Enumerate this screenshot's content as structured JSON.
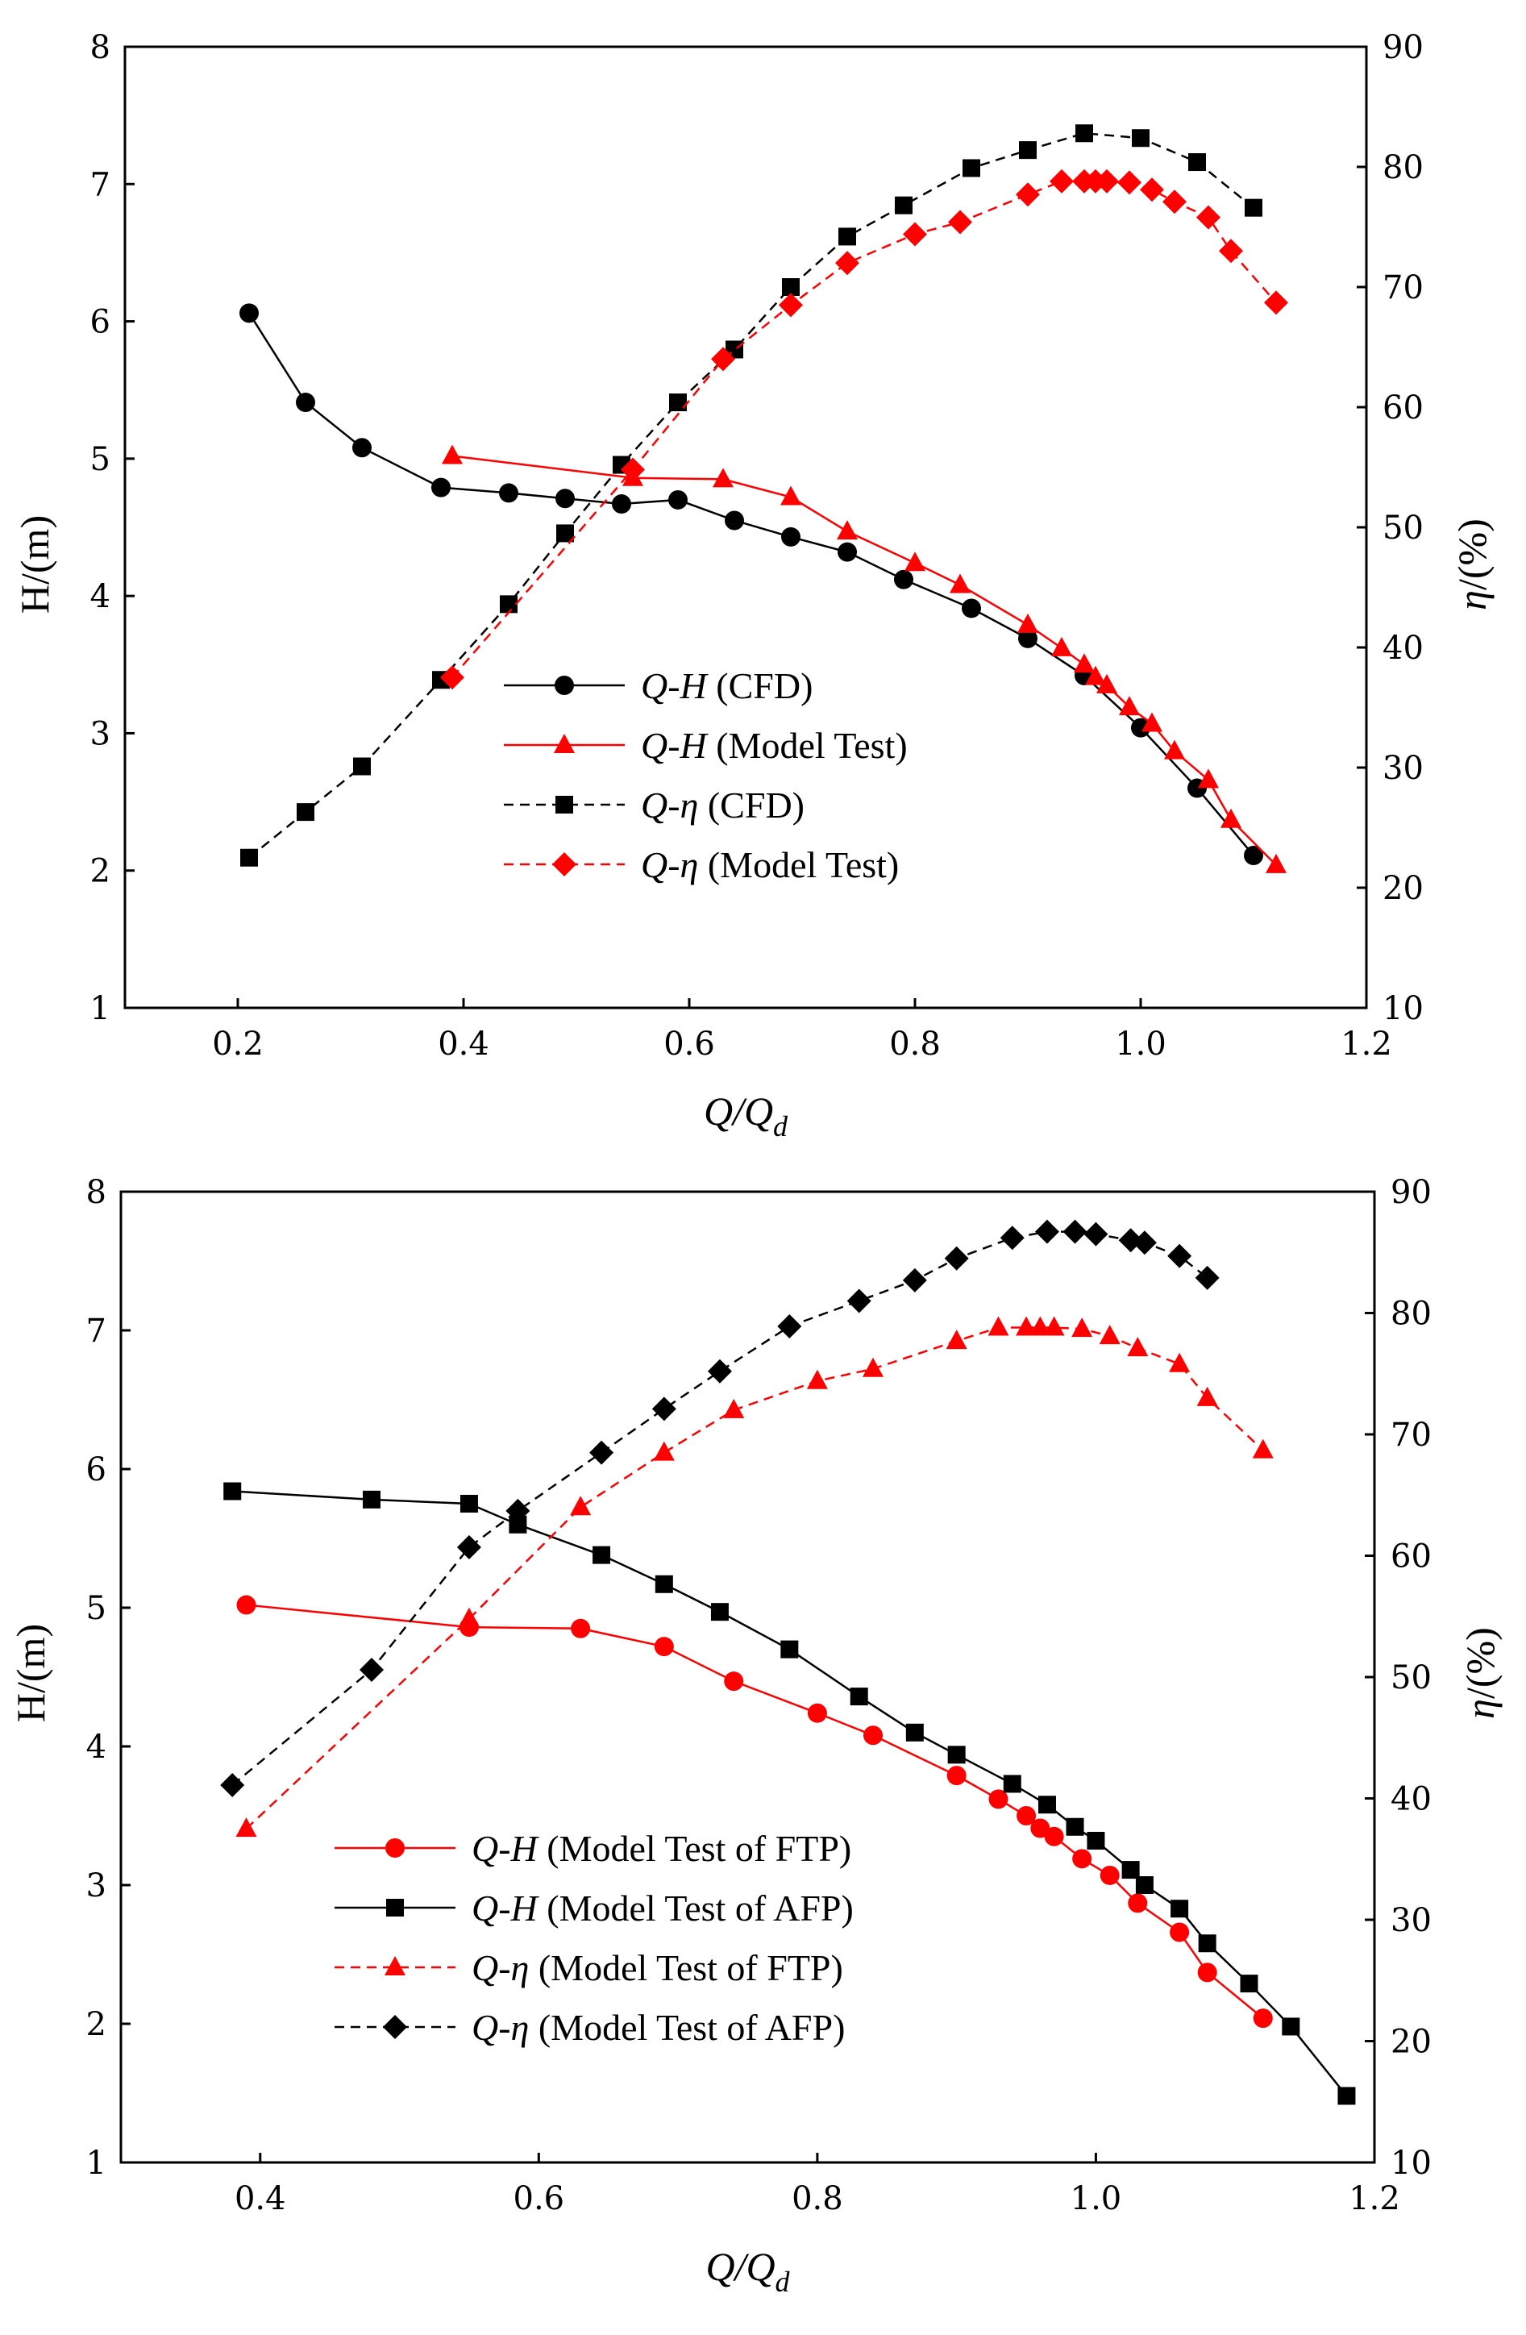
{
  "chart_data": [
    {
      "type": "line",
      "xlabel": "Q/Q",
      "xlabel_sub": "d",
      "ylabel_left": "H/(m)",
      "ylabel_right": "η/(%)",
      "xlim": [
        0.1,
        1.2
      ],
      "ylim_left": [
        1,
        8
      ],
      "ylim_right": [
        10,
        90
      ],
      "x_ticks": [
        "0.2",
        "0.4",
        "0.6",
        "0.8",
        "1.0",
        "1.2"
      ],
      "y_left_ticks": [
        "1",
        "2",
        "3",
        "4",
        "5",
        "6",
        "7",
        "8"
      ],
      "y_right_ticks": [
        "10",
        "20",
        "30",
        "40",
        "50",
        "60",
        "70",
        "80",
        "90"
      ],
      "legend_position": "center",
      "series": [
        {
          "name_italic": "Q-H",
          "name_rest": " (CFD)",
          "axis": "left",
          "color": "#000000",
          "dashed": false,
          "marker": "circle",
          "x": [
            0.21,
            0.26,
            0.31,
            0.38,
            0.44,
            0.49,
            0.54,
            0.59,
            0.64,
            0.69,
            0.74,
            0.79,
            0.85,
            0.9,
            0.95,
            1.0,
            1.05,
            1.1
          ],
          "y": [
            6.06,
            5.41,
            5.08,
            4.79,
            4.75,
            4.71,
            4.67,
            4.7,
            4.55,
            4.43,
            4.32,
            4.12,
            3.91,
            3.69,
            3.42,
            3.04,
            2.6,
            2.11
          ]
        },
        {
          "name_italic": "Q-H",
          "name_rest": " (Model Test)",
          "axis": "left",
          "color": "#ff0000",
          "dashed": false,
          "marker": "triangle",
          "x": [
            0.39,
            0.55,
            0.63,
            0.69,
            0.74,
            0.8,
            0.84,
            0.9,
            0.93,
            0.95,
            0.96,
            0.97,
            0.99,
            1.01,
            1.03,
            1.06,
            1.08,
            1.12
          ],
          "y": [
            5.02,
            4.86,
            4.85,
            4.72,
            4.47,
            4.24,
            4.08,
            3.79,
            3.62,
            3.5,
            3.41,
            3.35,
            3.19,
            3.07,
            2.87,
            2.66,
            2.37,
            2.04
          ]
        },
        {
          "name_italic": "Q-η",
          "name_rest": " (CFD)",
          "axis": "right",
          "color": "#000000",
          "dashed": true,
          "marker": "square",
          "x": [
            0.21,
            0.26,
            0.31,
            0.38,
            0.44,
            0.49,
            0.54,
            0.59,
            0.64,
            0.69,
            0.74,
            0.79,
            0.85,
            0.9,
            0.95,
            1.0,
            1.05,
            1.1
          ],
          "y": [
            22.5,
            26.3,
            30.1,
            37.3,
            43.6,
            49.5,
            55.2,
            60.4,
            64.8,
            70.0,
            74.2,
            76.8,
            79.9,
            81.4,
            82.8,
            82.4,
            80.4,
            76.6
          ]
        },
        {
          "name_italic": "Q-η",
          "name_rest": " (Model Test)",
          "axis": "right",
          "color": "#ff0000",
          "dashed": true,
          "marker": "diamond",
          "x": [
            0.39,
            0.55,
            0.63,
            0.69,
            0.74,
            0.8,
            0.84,
            0.9,
            0.93,
            0.95,
            0.96,
            0.97,
            0.99,
            1.01,
            1.03,
            1.06,
            1.08,
            1.12
          ],
          "y": [
            37.5,
            54.8,
            64.0,
            68.5,
            72.0,
            74.4,
            75.4,
            77.7,
            78.8,
            78.8,
            78.8,
            78.8,
            78.7,
            78.1,
            77.1,
            75.8,
            73.0,
            68.7
          ]
        }
      ]
    },
    {
      "type": "line",
      "xlabel": "Q/Q",
      "xlabel_sub": "d",
      "ylabel_left": "H/(m)",
      "ylabel_right": "η/(%)",
      "xlim": [
        0.3,
        1.2
      ],
      "ylim_left": [
        1,
        8
      ],
      "ylim_right": [
        10,
        90
      ],
      "x_ticks": [
        "0.4",
        "0.6",
        "0.8",
        "1.0",
        "1.2"
      ],
      "y_left_ticks": [
        "1",
        "2",
        "3",
        "4",
        "5",
        "6",
        "7",
        "8"
      ],
      "y_right_ticks": [
        "10",
        "20",
        "30",
        "40",
        "50",
        "60",
        "70",
        "80",
        "90"
      ],
      "legend_position": "lower-left",
      "series": [
        {
          "name_italic": "Q-H",
          "name_rest": " (Model Test of FTP)",
          "axis": "left",
          "color": "#ff0000",
          "dashed": false,
          "marker": "circle",
          "x": [
            0.39,
            0.55,
            0.63,
            0.69,
            0.74,
            0.8,
            0.84,
            0.9,
            0.93,
            0.95,
            0.96,
            0.97,
            0.99,
            1.01,
            1.03,
            1.06,
            1.08,
            1.12
          ],
          "y": [
            5.02,
            4.86,
            4.85,
            4.72,
            4.47,
            4.24,
            4.08,
            3.79,
            3.62,
            3.5,
            3.41,
            3.35,
            3.19,
            3.07,
            2.87,
            2.66,
            2.37,
            2.04
          ]
        },
        {
          "name_italic": "Q-H",
          "name_rest": " (Model Test of AFP)",
          "axis": "left",
          "color": "#000000",
          "dashed": false,
          "marker": "square",
          "x": [
            0.38,
            0.48,
            0.55,
            0.585,
            0.645,
            0.69,
            0.73,
            0.78,
            0.83,
            0.87,
            0.9,
            0.94,
            0.965,
            0.985,
            1.0,
            1.025,
            1.035,
            1.06,
            1.08,
            1.11,
            1.14,
            1.18
          ],
          "y": [
            5.84,
            5.78,
            5.75,
            5.6,
            5.38,
            5.17,
            4.97,
            4.7,
            4.36,
            4.1,
            3.94,
            3.73,
            3.58,
            3.42,
            3.32,
            3.11,
            3.0,
            2.83,
            2.58,
            2.29,
            1.98,
            1.48
          ]
        },
        {
          "name_italic": "Q-η",
          "name_rest": " (Model Test of FTP)",
          "axis": "right",
          "color": "#ff0000",
          "dashed": true,
          "marker": "triangle",
          "x": [
            0.39,
            0.55,
            0.63,
            0.69,
            0.74,
            0.8,
            0.84,
            0.9,
            0.93,
            0.95,
            0.96,
            0.97,
            0.99,
            1.01,
            1.03,
            1.06,
            1.08,
            1.12
          ],
          "y": [
            37.5,
            54.8,
            64.0,
            68.5,
            72.0,
            74.4,
            75.4,
            77.7,
            78.8,
            78.8,
            78.8,
            78.8,
            78.7,
            78.1,
            77.1,
            75.8,
            73.0,
            68.7
          ]
        },
        {
          "name_italic": "Q-η",
          "name_rest": " (Model Test of AFP)",
          "axis": "right",
          "color": "#000000",
          "dashed": true,
          "marker": "diamond",
          "x": [
            0.38,
            0.48,
            0.55,
            0.585,
            0.645,
            0.69,
            0.73,
            0.78,
            0.83,
            0.87,
            0.9,
            0.94,
            0.965,
            0.985,
            1.0,
            1.025,
            1.035,
            1.06,
            1.08
          ],
          "y": [
            41.1,
            50.6,
            60.7,
            63.7,
            68.5,
            72.1,
            75.2,
            78.9,
            81.0,
            82.7,
            84.5,
            86.2,
            86.7,
            86.7,
            86.5,
            86.0,
            85.8,
            84.7,
            82.9
          ]
        }
      ]
    }
  ]
}
